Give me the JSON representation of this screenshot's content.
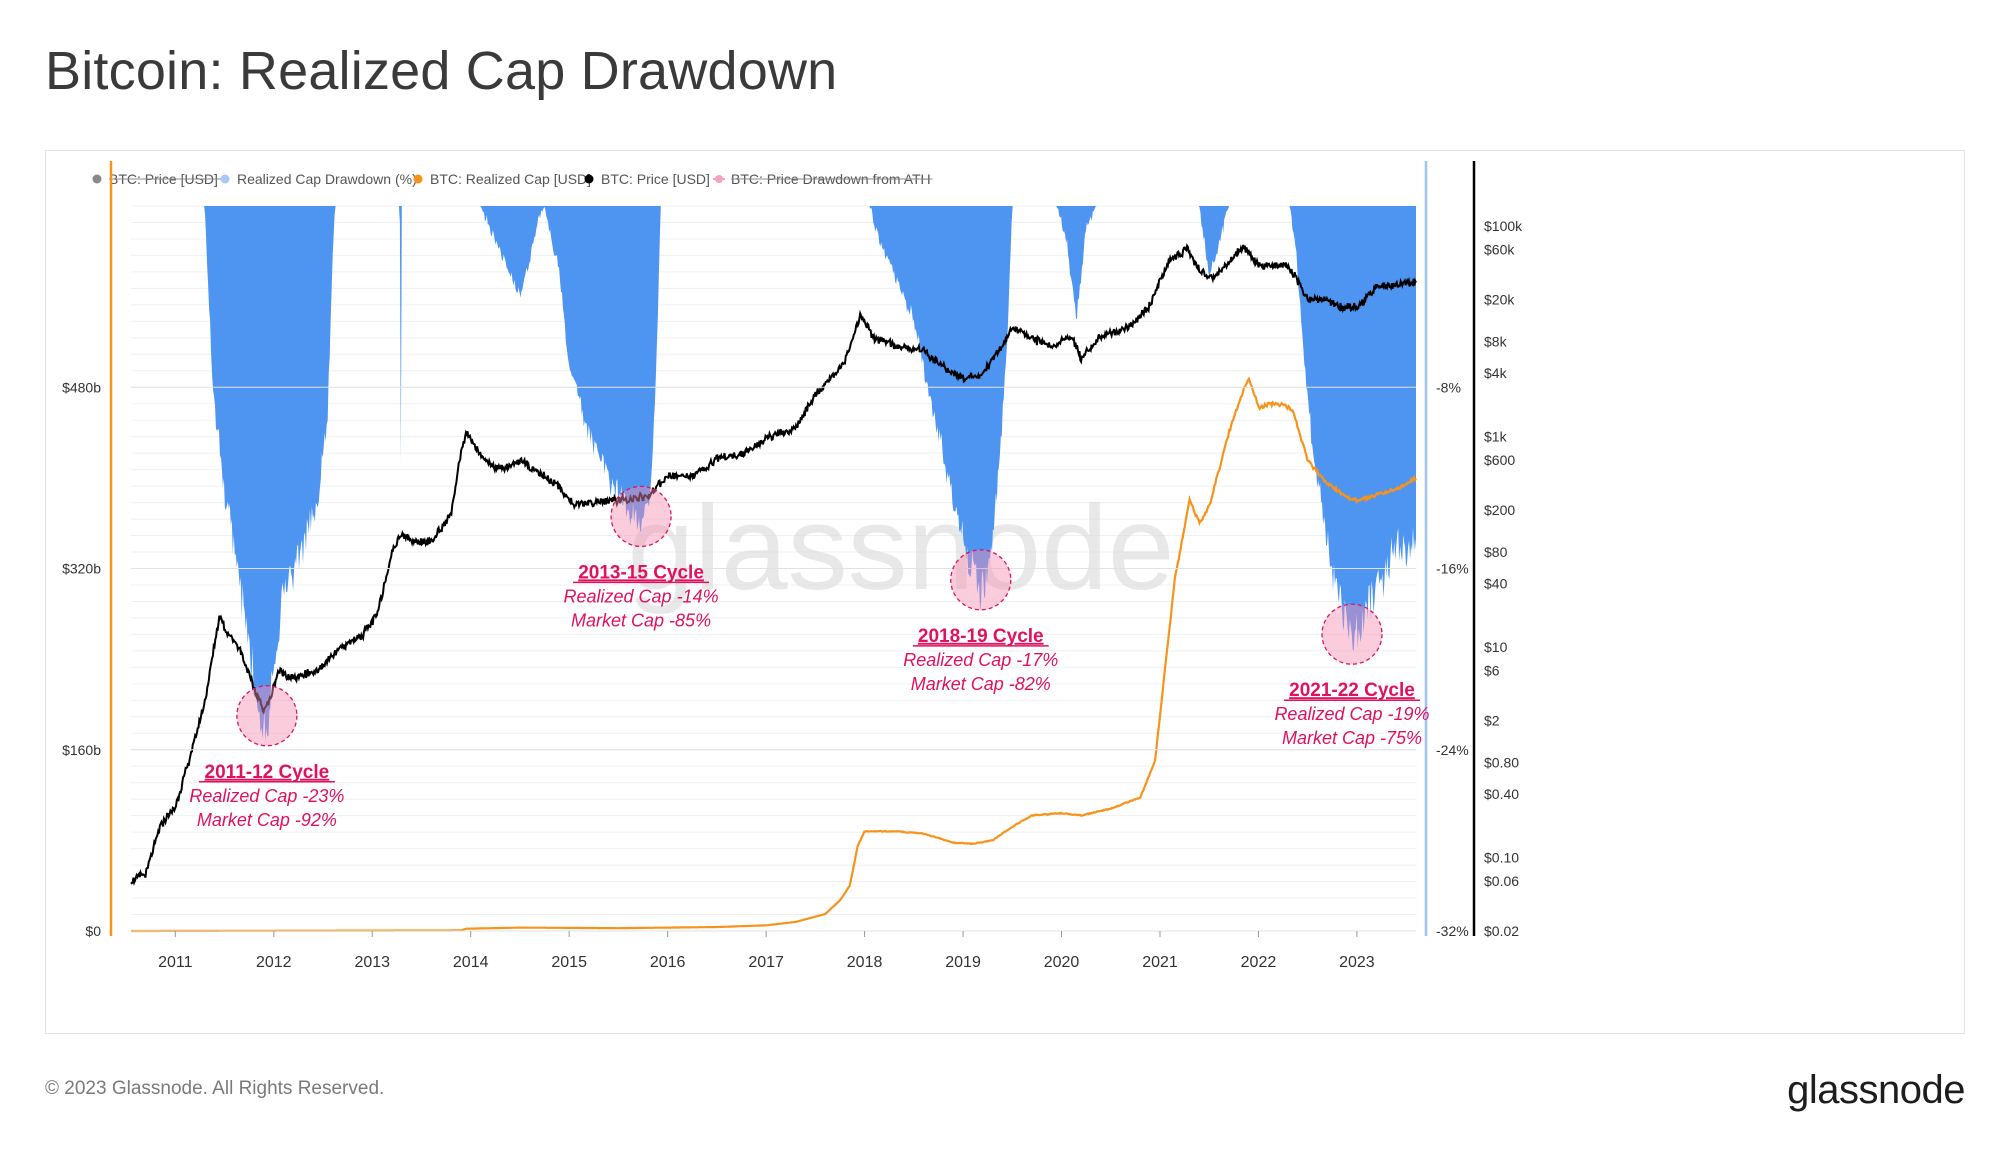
{
  "page": {
    "title": "Bitcoin: Realized Cap Drawdown",
    "copyright": "© 2023 Glassnode. All Rights Reserved.",
    "logo": "glassnode",
    "watermark": "glassnode"
  },
  "colors": {
    "drawdown": "#4e95f2",
    "realized_cap": "#f7931a",
    "price": "#000000",
    "annotation": "#e0115f",
    "left_axis_line": "#f7931a",
    "right_axis_line": "#9ec3f7"
  },
  "chart_data": {
    "type": "line",
    "title": "Bitcoin: Realized Cap Drawdown",
    "legend": [
      {
        "label": "BTC: Price [USD]",
        "color": "#888888",
        "marker": "circle",
        "hidden": true
      },
      {
        "label": "Realized Cap Drawdown (%)",
        "color": "#a9c8f5",
        "marker": "circle",
        "hidden": false
      },
      {
        "label": "BTC: Realized Cap [USD]",
        "color": "#f7931a",
        "marker": "circle",
        "hidden": false
      },
      {
        "label": "BTC: Price [USD]",
        "color": "#000000",
        "marker": "circle",
        "hidden": false
      },
      {
        "label": "BTC: Price Drawdown from ATH",
        "color": "#f4a3b8",
        "marker": "line",
        "hidden": true
      }
    ],
    "legend_position": "top-left",
    "x_range": [
      2010.55,
      2023.6
    ],
    "x_ticks": [
      "2011",
      "2012",
      "2013",
      "2014",
      "2015",
      "2016",
      "2017",
      "2018",
      "2019",
      "2020",
      "2021",
      "2022",
      "2023"
    ],
    "y_left": {
      "range": [
        0,
        640
      ],
      "unit": "billion USD",
      "ticks": [
        {
          "v": 0,
          "label": "$0"
        },
        {
          "v": 160,
          "label": "$160b"
        },
        {
          "v": 320,
          "label": "$320b"
        },
        {
          "v": 480,
          "label": "$480b"
        }
      ]
    },
    "y_drawdown": {
      "range": [
        -32,
        0
      ],
      "unit": "%",
      "ticks": [
        {
          "v": -8,
          "label": "-8%"
        },
        {
          "v": -16,
          "label": "-16%"
        },
        {
          "v": -24,
          "label": "-24%"
        },
        {
          "v": -32,
          "label": "-32%"
        }
      ]
    },
    "y_price_log": {
      "range": [
        0.02,
        100000
      ],
      "scale": "log",
      "ticks": [
        {
          "v": 100000,
          "label": "$100k"
        },
        {
          "v": 60000,
          "label": "$60k"
        },
        {
          "v": 20000,
          "label": "$20k"
        },
        {
          "v": 8000,
          "label": "$8k"
        },
        {
          "v": 4000,
          "label": "$4k"
        },
        {
          "v": 1000,
          "label": "$1k"
        },
        {
          "v": 600,
          "label": "$600"
        },
        {
          "v": 200,
          "label": "$200"
        },
        {
          "v": 80,
          "label": "$80"
        },
        {
          "v": 40,
          "label": "$40"
        },
        {
          "v": 10,
          "label": "$10"
        },
        {
          "v": 6,
          "label": "$6"
        },
        {
          "v": 2,
          "label": "$2"
        },
        {
          "v": 0.8,
          "label": "$0.80"
        },
        {
          "v": 0.4,
          "label": "$0.40"
        },
        {
          "v": 0.1,
          "label": "$0.10"
        },
        {
          "v": 0.06,
          "label": "$0.06"
        },
        {
          "v": 0.02,
          "label": "$0.02"
        }
      ]
    },
    "series": [
      {
        "name": "Realized Cap Drawdown (%)",
        "axis": "drawdown",
        "style": "area",
        "points": [
          [
            2010.55,
            0
          ],
          [
            2011.2,
            0
          ],
          [
            2011.3,
            0
          ],
          [
            2011.38,
            -8
          ],
          [
            2011.48,
            -12
          ],
          [
            2011.6,
            -15
          ],
          [
            2011.7,
            -18
          ],
          [
            2011.8,
            -21
          ],
          [
            2011.88,
            -22.5
          ],
          [
            2011.93,
            -23
          ],
          [
            2012.0,
            -20
          ],
          [
            2012.1,
            -17
          ],
          [
            2012.3,
            -15
          ],
          [
            2012.45,
            -13
          ],
          [
            2012.55,
            -9
          ],
          [
            2012.6,
            -2
          ],
          [
            2012.62,
            0
          ],
          [
            2013.28,
            0
          ],
          [
            2013.29,
            -11.5
          ],
          [
            2013.3,
            0
          ],
          [
            2014.1,
            0
          ],
          [
            2014.3,
            -2
          ],
          [
            2014.5,
            -4
          ],
          [
            2014.7,
            -0.5
          ],
          [
            2014.75,
            0
          ],
          [
            2014.9,
            -3
          ],
          [
            2015.0,
            -7
          ],
          [
            2015.2,
            -10
          ],
          [
            2015.4,
            -12
          ],
          [
            2015.6,
            -13.5
          ],
          [
            2015.72,
            -14
          ],
          [
            2015.82,
            -13
          ],
          [
            2015.86,
            -10
          ],
          [
            2015.9,
            -5
          ],
          [
            2015.93,
            0
          ],
          [
            2018.05,
            0
          ],
          [
            2018.15,
            -1.5
          ],
          [
            2018.3,
            -3
          ],
          [
            2018.5,
            -5
          ],
          [
            2018.7,
            -9
          ],
          [
            2018.9,
            -13
          ],
          [
            2019.05,
            -15.5
          ],
          [
            2019.17,
            -17
          ],
          [
            2019.28,
            -16
          ],
          [
            2019.36,
            -12
          ],
          [
            2019.45,
            -6
          ],
          [
            2019.5,
            0
          ],
          [
            2019.95,
            0
          ],
          [
            2020.05,
            -1.5
          ],
          [
            2020.15,
            -5
          ],
          [
            2020.25,
            -1
          ],
          [
            2020.35,
            0
          ],
          [
            2021.4,
            0
          ],
          [
            2021.45,
            -1.5
          ],
          [
            2021.5,
            -3
          ],
          [
            2021.58,
            -2
          ],
          [
            2021.7,
            0
          ],
          [
            2022.32,
            0
          ],
          [
            2022.38,
            -2
          ],
          [
            2022.45,
            -6
          ],
          [
            2022.55,
            -11
          ],
          [
            2022.7,
            -15
          ],
          [
            2022.85,
            -18
          ],
          [
            2022.95,
            -19
          ],
          [
            2023.05,
            -18.5
          ],
          [
            2023.2,
            -17
          ],
          [
            2023.4,
            -15
          ],
          [
            2023.6,
            -15
          ]
        ]
      },
      {
        "name": "BTC: Realized Cap [USD]",
        "axis": "left",
        "unit": "billion USD",
        "points": [
          [
            2010.55,
            0
          ],
          [
            2013.9,
            0.5
          ],
          [
            2013.95,
            2
          ],
          [
            2014.5,
            3
          ],
          [
            2015.5,
            2.5
          ],
          [
            2016.5,
            3.5
          ],
          [
            2017.0,
            5
          ],
          [
            2017.3,
            8
          ],
          [
            2017.6,
            15
          ],
          [
            2017.75,
            27
          ],
          [
            2017.85,
            40
          ],
          [
            2017.93,
            75
          ],
          [
            2018.0,
            88
          ],
          [
            2018.3,
            88
          ],
          [
            2018.6,
            86
          ],
          [
            2018.9,
            78
          ],
          [
            2019.1,
            77
          ],
          [
            2019.3,
            80
          ],
          [
            2019.5,
            92
          ],
          [
            2019.7,
            102
          ],
          [
            2020.0,
            104
          ],
          [
            2020.2,
            102
          ],
          [
            2020.5,
            108
          ],
          [
            2020.8,
            118
          ],
          [
            2020.95,
            150
          ],
          [
            2021.05,
            230
          ],
          [
            2021.15,
            310
          ],
          [
            2021.3,
            380
          ],
          [
            2021.4,
            360
          ],
          [
            2021.5,
            375
          ],
          [
            2021.7,
            440
          ],
          [
            2021.9,
            490
          ],
          [
            2022.0,
            462
          ],
          [
            2022.1,
            465
          ],
          [
            2022.25,
            465
          ],
          [
            2022.35,
            460
          ],
          [
            2022.5,
            415
          ],
          [
            2022.7,
            395
          ],
          [
            2022.9,
            383
          ],
          [
            2023.0,
            380
          ],
          [
            2023.2,
            385
          ],
          [
            2023.4,
            390
          ],
          [
            2023.6,
            400
          ]
        ]
      },
      {
        "name": "BTC: Price [USD]",
        "axis": "price_log",
        "points": [
          [
            2010.55,
            0.06
          ],
          [
            2010.7,
            0.07
          ],
          [
            2010.85,
            0.2
          ],
          [
            2011.0,
            0.3
          ],
          [
            2011.15,
            0.9
          ],
          [
            2011.3,
            3
          ],
          [
            2011.45,
            20
          ],
          [
            2011.52,
            14
          ],
          [
            2011.65,
            10
          ],
          [
            2011.8,
            4
          ],
          [
            2011.9,
            2.5
          ],
          [
            2011.95,
            3
          ],
          [
            2012.05,
            6
          ],
          [
            2012.2,
            5
          ],
          [
            2012.45,
            6
          ],
          [
            2012.7,
            10
          ],
          [
            2012.9,
            13
          ],
          [
            2013.05,
            20
          ],
          [
            2013.2,
            80
          ],
          [
            2013.3,
            120
          ],
          [
            2013.4,
            100
          ],
          [
            2013.6,
            100
          ],
          [
            2013.8,
            180
          ],
          [
            2013.9,
            700
          ],
          [
            2013.96,
            1100
          ],
          [
            2014.1,
            650
          ],
          [
            2014.3,
            480
          ],
          [
            2014.5,
            600
          ],
          [
            2014.7,
            450
          ],
          [
            2014.9,
            330
          ],
          [
            2015.05,
            220
          ],
          [
            2015.3,
            240
          ],
          [
            2015.6,
            250
          ],
          [
            2015.8,
            270
          ],
          [
            2016.0,
            420
          ],
          [
            2016.3,
            430
          ],
          [
            2016.5,
            620
          ],
          [
            2016.8,
            700
          ],
          [
            2017.0,
            950
          ],
          [
            2017.3,
            1200
          ],
          [
            2017.5,
            2500
          ],
          [
            2017.8,
            5000
          ],
          [
            2017.96,
            14000
          ],
          [
            2018.1,
            8500
          ],
          [
            2018.4,
            7000
          ],
          [
            2018.6,
            6500
          ],
          [
            2018.88,
            4000
          ],
          [
            2019.0,
            3600
          ],
          [
            2019.2,
            3900
          ],
          [
            2019.4,
            7500
          ],
          [
            2019.5,
            10500
          ],
          [
            2019.7,
            8500
          ],
          [
            2019.9,
            7200
          ],
          [
            2020.1,
            9000
          ],
          [
            2020.2,
            5500
          ],
          [
            2020.4,
            9000
          ],
          [
            2020.7,
            11000
          ],
          [
            2020.9,
            18000
          ],
          [
            2021.0,
            30000
          ],
          [
            2021.1,
            48000
          ],
          [
            2021.28,
            60000
          ],
          [
            2021.4,
            38000
          ],
          [
            2021.55,
            32000
          ],
          [
            2021.7,
            45000
          ],
          [
            2021.85,
            65000
          ],
          [
            2022.0,
            42000
          ],
          [
            2022.3,
            42000
          ],
          [
            2022.4,
            30000
          ],
          [
            2022.5,
            20000
          ],
          [
            2022.7,
            20000
          ],
          [
            2022.85,
            16500
          ],
          [
            2023.0,
            17000
          ],
          [
            2023.2,
            26000
          ],
          [
            2023.4,
            28000
          ],
          [
            2023.6,
            29000
          ]
        ]
      }
    ],
    "annotations": [
      {
        "name": "cycle-2011-12",
        "title": "2011-12 Cycle",
        "line1": "Realized Cap -23%",
        "line2": "Market Cap -92%",
        "x": 2011.93,
        "dd": -22.5
      },
      {
        "name": "cycle-2013-15",
        "title": "2013-15 Cycle",
        "line1": "Realized Cap -14%",
        "line2": "Market Cap -85%",
        "x": 2015.73,
        "dd": -13.7
      },
      {
        "name": "cycle-2018-19",
        "title": "2018-19 Cycle",
        "line1": "Realized Cap -17%",
        "line2": "Market Cap -82%",
        "x": 2019.18,
        "dd": -16.5
      },
      {
        "name": "cycle-2021-22",
        "title": "2021-22 Cycle",
        "line1": "Realized Cap -19%",
        "line2": "Market Cap -75%",
        "x": 2022.95,
        "dd": -18.9
      }
    ]
  }
}
